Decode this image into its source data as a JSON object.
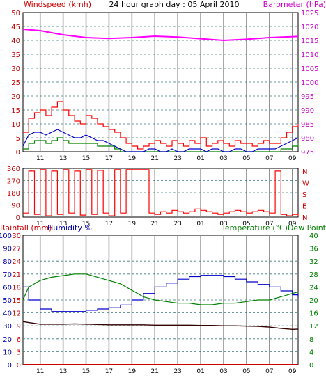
{
  "header": {
    "left_label": "Windspeed (kmh)",
    "center_title": "24 hour graph day : 05 April 2010",
    "right_label": "Barometer (hPa)"
  },
  "colors": {
    "windspeed": "#ff0000",
    "gust_fill": "#ff0000",
    "wind_avg": "#0000cc",
    "wind_low": "#008000",
    "barometer": "#ff00ff",
    "wind_direction": "#ff0000",
    "humidity": "#0000cc",
    "temperature": "#008000",
    "dew_point": "#330000",
    "rainfall": "#cc0000",
    "grid": "#666666",
    "left_axis": "#cc0000",
    "right_axis_baro": "#cc00cc",
    "right_axis_temp": "#008000",
    "humidity_axis": "#0000aa"
  },
  "x_ticks": [
    "11",
    "13",
    "15",
    "17",
    "19",
    "21",
    "23",
    "01",
    "03",
    "05",
    "07",
    "09"
  ],
  "chart_data": [
    {
      "type": "line",
      "title": "24 hour graph day : 05 April 2010",
      "ylabel": "Windspeed (kmh)",
      "y2label": "Barometer (hPa)",
      "ylim": [
        0,
        50
      ],
      "y2lim": [
        975,
        1025
      ],
      "y_ticks": [
        "0",
        "5",
        "10",
        "15",
        "20",
        "25",
        "30",
        "35",
        "40",
        "45",
        "50"
      ],
      "y2_ticks": [
        "975",
        "980",
        "985",
        "990",
        "995",
        "1000",
        "1005",
        "1010",
        "1015",
        "1020",
        "1025"
      ],
      "x_ticks": [
        "11",
        "13",
        "15",
        "17",
        "19",
        "21",
        "23",
        "01",
        "03",
        "05",
        "07",
        "09"
      ],
      "grid": true,
      "series": [
        {
          "name": "Windspeed (kmh)",
          "axis": "left",
          "x": [
            9.5,
            10,
            10.5,
            11,
            11.5,
            12,
            12.5,
            13,
            13.5,
            14,
            14.5,
            15,
            15.5,
            16,
            16.5,
            17,
            17.5,
            18,
            18.5,
            19,
            19.5,
            20,
            20.5,
            21,
            21.5,
            22,
            22.5,
            23,
            23.5,
            24,
            24.5,
            25,
            25.5,
            26,
            26.5,
            27,
            27.5,
            28,
            28.5,
            29,
            29.5,
            30,
            30.5,
            31,
            31.5,
            32,
            32.5,
            33,
            33.5
          ],
          "values": [
            7,
            12,
            14,
            15,
            13,
            16,
            18,
            15,
            13,
            11,
            10,
            13,
            12,
            10,
            9,
            8,
            7,
            5,
            3,
            2,
            1,
            2,
            3,
            4,
            3,
            2,
            4,
            3,
            2,
            4,
            3,
            5,
            2,
            3,
            4,
            3,
            2,
            4,
            3,
            3,
            2,
            3,
            4,
            3,
            3,
            5,
            7,
            9,
            10
          ]
        },
        {
          "name": "Wind average",
          "axis": "left",
          "x": [
            9.5,
            10,
            10.5,
            11,
            11.5,
            12,
            12.5,
            13,
            13.5,
            14,
            14.5,
            15,
            15.5,
            16,
            16.5,
            17,
            17.5,
            18,
            18.5,
            19,
            19.5,
            20,
            20.5,
            21,
            21.5,
            22,
            22.5,
            23,
            23.5,
            24,
            24.5,
            25,
            25.5,
            26,
            26.5,
            27,
            27.5,
            28,
            28.5,
            29,
            29.5,
            30,
            30.5,
            31,
            31.5,
            32,
            32.5,
            33,
            33.5
          ],
          "values": [
            2,
            6,
            7,
            7,
            6,
            7,
            8,
            7,
            6,
            5,
            5,
            6,
            5,
            4,
            4,
            3,
            2,
            1,
            0,
            0,
            0,
            0,
            1,
            1,
            0,
            0,
            1,
            0,
            0,
            1,
            1,
            1,
            0,
            1,
            1,
            0,
            0,
            1,
            1,
            0,
            0,
            1,
            1,
            1,
            1,
            2,
            3,
            4,
            5
          ]
        },
        {
          "name": "Wind low",
          "axis": "left",
          "x": [
            9.5,
            10,
            10.5,
            11,
            11.5,
            12,
            12.5,
            13,
            13.5,
            14,
            14.5,
            15,
            15.5,
            16,
            16.5,
            17,
            17.5,
            18,
            18.5,
            19,
            19.5,
            20,
            20.5,
            21,
            21.5,
            22,
            22.5,
            23,
            23.5,
            24,
            24.5,
            25,
            25.5,
            26,
            26.5,
            27,
            27.5,
            28,
            28.5,
            29,
            29.5,
            30,
            30.5,
            31,
            31.5,
            32,
            32.5,
            33,
            33.5
          ],
          "values": [
            1,
            3,
            4,
            4,
            3,
            4,
            5,
            4,
            3,
            3,
            3,
            3,
            3,
            2,
            2,
            2,
            1,
            0,
            0,
            0,
            0,
            0,
            0,
            0,
            0,
            0,
            0,
            0,
            0,
            0,
            0,
            0,
            0,
            0,
            0,
            0,
            0,
            0,
            0,
            0,
            0,
            0,
            0,
            0,
            0,
            1,
            1,
            2,
            3
          ]
        },
        {
          "name": "Barometer (hPa)",
          "axis": "right",
          "x": [
            9.5,
            11,
            13,
            15,
            17,
            19,
            21,
            23,
            25,
            27,
            29,
            31,
            33.5
          ],
          "values": [
            1019,
            1018.5,
            1017,
            1016,
            1015.7,
            1016,
            1016.5,
            1016.2,
            1015.6,
            1015,
            1015.4,
            1016,
            1016.4
          ]
        }
      ]
    },
    {
      "type": "scatter",
      "ylabel": "",
      "y_ticks": [
        "0",
        "90",
        "180",
        "270",
        "360"
      ],
      "y_ticks_right": [
        "N",
        "E",
        "S",
        "W",
        "N"
      ],
      "ylim": [
        0,
        360
      ],
      "x_ticks": [
        "11",
        "13",
        "15",
        "17",
        "19",
        "21",
        "23",
        "01",
        "03",
        "05",
        "07",
        "09"
      ],
      "grid": true,
      "series": [
        {
          "name": "Wind direction",
          "x": [
            9.5,
            10,
            10.5,
            11,
            11.5,
            12,
            12.5,
            13,
            13.5,
            14,
            14.5,
            15,
            15.5,
            16,
            16.5,
            17,
            17.5,
            18,
            18.5,
            19,
            19.5,
            20,
            20.5,
            21,
            21.5,
            22,
            22.5,
            23,
            23.5,
            24,
            24.5,
            25,
            25.5,
            26,
            26.5,
            27,
            27.5,
            28,
            28.5,
            29,
            29.5,
            30,
            30.5,
            31,
            31.5,
            32,
            32.5,
            33,
            33.5
          ],
          "values": [
            30,
            340,
            20,
            350,
            10,
            340,
            20,
            350,
            30,
            340,
            15,
            350,
            20,
            345,
            30,
            10,
            350,
            30,
            350,
            350,
            350,
            350,
            30,
            20,
            40,
            30,
            50,
            40,
            30,
            40,
            60,
            50,
            40,
            30,
            20,
            30,
            40,
            50,
            40,
            30,
            40,
            50,
            40,
            30,
            340,
            20,
            10,
            20,
            10
          ]
        }
      ]
    },
    {
      "type": "line",
      "ylabel": "Rainfall (mm)  Humidity %",
      "y2label": "Temperature (°C)Dew Point",
      "humidity_ticks": [
        "0",
        "10",
        "20",
        "30",
        "40",
        "50",
        "60",
        "70",
        "80",
        "90",
        "100"
      ],
      "rain_ticks": [
        "0",
        "3",
        "6",
        "9",
        "12",
        "15",
        "18",
        "21",
        "24",
        "27",
        "30"
      ],
      "temp_ticks": [
        "0",
        "4",
        "8",
        "12",
        "16",
        "20",
        "24",
        "28",
        "32",
        "36",
        "40"
      ],
      "ylim": [
        0,
        100
      ],
      "y2lim": [
        0,
        40
      ],
      "x_ticks": [
        "11",
        "13",
        "15",
        "17",
        "19",
        "21",
        "23",
        "01",
        "03",
        "05",
        "07",
        "09"
      ],
      "grid": true,
      "series": [
        {
          "name": "Humidity %",
          "axis": "humidity",
          "x": [
            9.5,
            10,
            11,
            12,
            13,
            14,
            15,
            16,
            17,
            18,
            19,
            20,
            21,
            22,
            23,
            24,
            25,
            26,
            27,
            28,
            29,
            30,
            31,
            32,
            33,
            33.5
          ],
          "values": [
            60,
            50,
            43,
            41,
            41,
            41,
            42,
            43,
            44,
            46,
            50,
            55,
            60,
            63,
            66,
            68,
            69,
            69,
            68,
            66,
            64,
            62,
            60,
            57,
            54,
            52
          ]
        },
        {
          "name": "Temperature (°C)",
          "axis": "temp",
          "x": [
            9.5,
            10,
            11,
            12,
            13,
            14,
            15,
            16,
            17,
            18,
            19,
            20,
            21,
            22,
            23,
            24,
            25,
            26,
            27,
            28,
            29,
            30,
            31,
            32,
            33,
            33.5
          ],
          "values": [
            20,
            24,
            26,
            27,
            27.5,
            28,
            28,
            27,
            26,
            25,
            23,
            21,
            20,
            19.5,
            19,
            19,
            18.5,
            18.5,
            19,
            19,
            19.5,
            20,
            20,
            21,
            22,
            22.5
          ]
        },
        {
          "name": "Dew Point",
          "axis": "temp",
          "x": [
            9.5,
            10,
            11,
            12,
            13,
            14,
            15,
            16,
            17,
            18,
            19,
            20,
            21,
            22,
            23,
            24,
            25,
            26,
            27,
            28,
            29,
            30,
            31,
            32,
            33,
            33.5
          ],
          "values": [
            13.3,
            13,
            12.5,
            12.5,
            12.5,
            12.6,
            12.5,
            12.4,
            12.3,
            12.3,
            12.3,
            12.3,
            12.2,
            12.2,
            12.2,
            12.2,
            12.1,
            12.1,
            12,
            12,
            11.9,
            11.8,
            11.6,
            11.2,
            10.9,
            11
          ]
        },
        {
          "name": "Rainfall (mm)",
          "axis": "rain",
          "x": [
            9.5,
            33.5
          ],
          "values": [
            0,
            0
          ]
        }
      ]
    }
  ],
  "labels": {
    "rain_label": "Rainfall (mm)",
    "humidity_label": "Humidity %",
    "temp_label": "Temperature (°C)Dew Point",
    "direction_right": [
      "N",
      "W",
      "S",
      "E",
      "N"
    ]
  }
}
